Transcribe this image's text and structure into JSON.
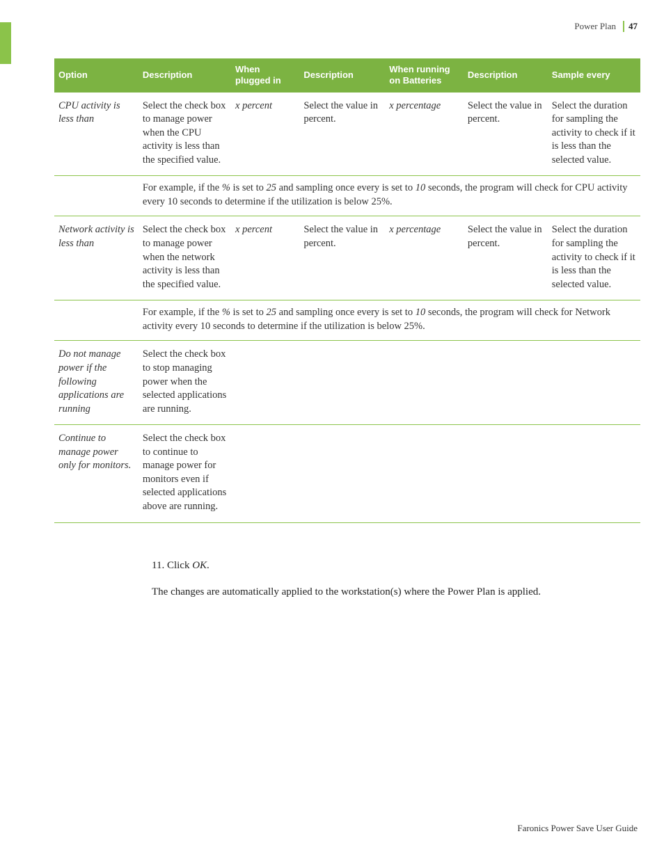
{
  "colors": {
    "accent": "#8bc34a",
    "header_bg": "#7cb342",
    "header_text": "#ffffff",
    "body_text": "#333333",
    "page_bg": "#ffffff"
  },
  "typography": {
    "body_font": "Georgia serif",
    "header_font": "Verdana sans-serif",
    "body_fontsize_pt": 11,
    "header_fontsize_pt": 10
  },
  "header": {
    "title": "Power Plan",
    "page_number": "47"
  },
  "table": {
    "columns": [
      "Option",
      "Description",
      "When plugged in",
      "Description",
      "When running on Batteries",
      "Description",
      "Sample every"
    ],
    "rows": [
      {
        "type": "data",
        "cells": [
          "CPU activity is less than",
          "Select the check box to manage power when the CPU activity is less than the specified value.",
          "x percent",
          "Select the value in percent.",
          "x percentage",
          "Select the value in percent.",
          "Select the duration for sampling the activity to check if it is less than the selected value."
        ],
        "italic_cells": [
          0,
          2,
          4
        ]
      },
      {
        "type": "span",
        "pre": "For example, if the ",
        "i1": "%",
        "mid1": " is set to ",
        "i2": "25",
        "mid2": " and sampling once every is set to ",
        "i3": "10",
        "post": " seconds, the program will check for CPU activity every 10 seconds to determine if the utilization is below 25%."
      },
      {
        "type": "data",
        "cells": [
          "Network activity is less than",
          "Select the check box to manage power when the network activity is less than the specified value.",
          "x percent",
          "Select the value in percent.",
          "x percentage",
          "Select the value in percent.",
          "Select the duration for sampling the activity to check if it is less than the selected value."
        ],
        "italic_cells": [
          0,
          2,
          4
        ]
      },
      {
        "type": "span",
        "pre": "For example, if the ",
        "i1": "%",
        "mid1": " is set to ",
        "i2": "25",
        "mid2": " and sampling once every is set to ",
        "i3": "10",
        "post": " seconds, the program will check for Network activity every 10 seconds to determine if the utilization is below 25%."
      },
      {
        "type": "data",
        "cells": [
          "Do not manage power if the following applications are running",
          "Select the check box to stop managing power when the selected applications are running.",
          "",
          "",
          "",
          "",
          ""
        ],
        "italic_cells": [
          0
        ]
      },
      {
        "type": "data",
        "cells": [
          "Continue to manage power only for monitors.",
          "Select the check box to continue to manage power for monitors even if selected applications above are running.",
          "",
          "",
          "",
          "",
          ""
        ],
        "italic_cells": [
          0
        ]
      }
    ]
  },
  "after": {
    "step_number": "11.",
    "step_pre": "  Click ",
    "step_em": "OK",
    "step_post": ".",
    "followup": "The changes are automatically applied to the workstation(s) where the Power Plan is applied."
  },
  "footer": {
    "text": "Faronics Power Save User Guide"
  }
}
